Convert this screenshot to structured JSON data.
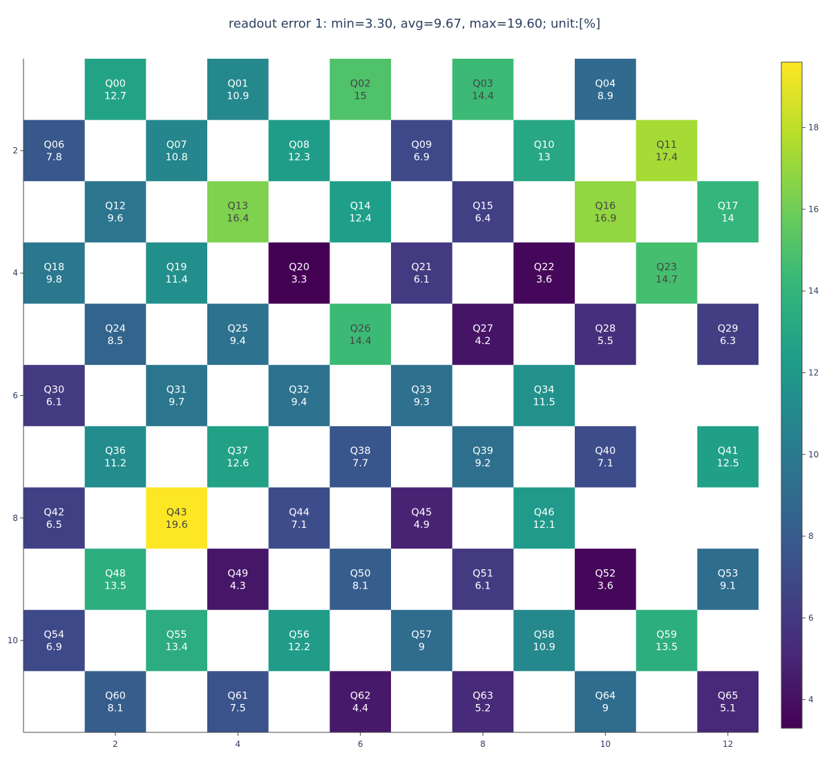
{
  "chart_data": {
    "type": "heatmap",
    "title": "readout error 1: min=3.30,  avg=9.67,  max=19.60; unit:[%]",
    "xlabel": "",
    "ylabel": "",
    "x_range": [
      0.5,
      12.5
    ],
    "y_range": [
      11.5,
      0.5
    ],
    "x_ticks": [
      2,
      4,
      6,
      8,
      10,
      12
    ],
    "y_ticks": [
      2,
      4,
      6,
      8,
      10
    ],
    "colorscale": "viridis",
    "color_range": [
      3.3,
      19.6
    ],
    "colorbar_ticks": [
      4,
      6,
      8,
      10,
      12,
      14,
      16,
      18
    ],
    "grid": false,
    "cells": [
      {
        "qubit": "Q00",
        "x": 2,
        "y": 1,
        "value": 12.7,
        "label": "12.7"
      },
      {
        "qubit": "Q01",
        "x": 4,
        "y": 1,
        "value": 10.9,
        "label": "10.9"
      },
      {
        "qubit": "Q02",
        "x": 6,
        "y": 1,
        "value": 15,
        "label": "15"
      },
      {
        "qubit": "Q03",
        "x": 8,
        "y": 1,
        "value": 14.4,
        "label": "14.4"
      },
      {
        "qubit": "Q04",
        "x": 10,
        "y": 1,
        "value": 8.9,
        "label": "8.9"
      },
      {
        "qubit": "Q06",
        "x": 1,
        "y": 2,
        "value": 7.8,
        "label": "7.8"
      },
      {
        "qubit": "Q07",
        "x": 3,
        "y": 2,
        "value": 10.8,
        "label": "10.8"
      },
      {
        "qubit": "Q08",
        "x": 5,
        "y": 2,
        "value": 12.3,
        "label": "12.3"
      },
      {
        "qubit": "Q09",
        "x": 7,
        "y": 2,
        "value": 6.9,
        "label": "6.9"
      },
      {
        "qubit": "Q10",
        "x": 9,
        "y": 2,
        "value": 13,
        "label": "13"
      },
      {
        "qubit": "Q11",
        "x": 11,
        "y": 2,
        "value": 17.4,
        "label": "17.4"
      },
      {
        "qubit": "Q12",
        "x": 2,
        "y": 3,
        "value": 9.6,
        "label": "9.6"
      },
      {
        "qubit": "Q13",
        "x": 4,
        "y": 3,
        "value": 16.4,
        "label": "16.4"
      },
      {
        "qubit": "Q14",
        "x": 6,
        "y": 3,
        "value": 12.4,
        "label": "12.4"
      },
      {
        "qubit": "Q15",
        "x": 8,
        "y": 3,
        "value": 6.4,
        "label": "6.4"
      },
      {
        "qubit": "Q16",
        "x": 10,
        "y": 3,
        "value": 16.9,
        "label": "16.9"
      },
      {
        "qubit": "Q17",
        "x": 12,
        "y": 3,
        "value": 14,
        "label": "14"
      },
      {
        "qubit": "Q18",
        "x": 1,
        "y": 4,
        "value": 9.8,
        "label": "9.8"
      },
      {
        "qubit": "Q19",
        "x": 3,
        "y": 4,
        "value": 11.4,
        "label": "11.4"
      },
      {
        "qubit": "Q20",
        "x": 5,
        "y": 4,
        "value": 3.3,
        "label": "3.3"
      },
      {
        "qubit": "Q21",
        "x": 7,
        "y": 4,
        "value": 6.1,
        "label": "6.1"
      },
      {
        "qubit": "Q22",
        "x": 9,
        "y": 4,
        "value": 3.6,
        "label": "3.6"
      },
      {
        "qubit": "Q23",
        "x": 11,
        "y": 4,
        "value": 14.7,
        "label": "14.7"
      },
      {
        "qubit": "Q24",
        "x": 2,
        "y": 5,
        "value": 8.5,
        "label": "8.5"
      },
      {
        "qubit": "Q25",
        "x": 4,
        "y": 5,
        "value": 9.4,
        "label": "9.4"
      },
      {
        "qubit": "Q26",
        "x": 6,
        "y": 5,
        "value": 14.4,
        "label": "14.4"
      },
      {
        "qubit": "Q27",
        "x": 8,
        "y": 5,
        "value": 4.2,
        "label": "4.2"
      },
      {
        "qubit": "Q28",
        "x": 10,
        "y": 5,
        "value": 5.5,
        "label": "5.5"
      },
      {
        "qubit": "Q29",
        "x": 12,
        "y": 5,
        "value": 6.3,
        "label": "6.3"
      },
      {
        "qubit": "Q30",
        "x": 1,
        "y": 6,
        "value": 6.1,
        "label": "6.1"
      },
      {
        "qubit": "Q31",
        "x": 3,
        "y": 6,
        "value": 9.7,
        "label": "9.7"
      },
      {
        "qubit": "Q32",
        "x": 5,
        "y": 6,
        "value": 9.4,
        "label": "9.4"
      },
      {
        "qubit": "Q33",
        "x": 7,
        "y": 6,
        "value": 9.3,
        "label": "9.3"
      },
      {
        "qubit": "Q34",
        "x": 9,
        "y": 6,
        "value": 11.5,
        "label": "11.5"
      },
      {
        "qubit": "Q36",
        "x": 2,
        "y": 7,
        "value": 11.2,
        "label": "11.2"
      },
      {
        "qubit": "Q37",
        "x": 4,
        "y": 7,
        "value": 12.6,
        "label": "12.6"
      },
      {
        "qubit": "Q38",
        "x": 6,
        "y": 7,
        "value": 7.7,
        "label": "7.7"
      },
      {
        "qubit": "Q39",
        "x": 8,
        "y": 7,
        "value": 9.2,
        "label": "9.2"
      },
      {
        "qubit": "Q40",
        "x": 10,
        "y": 7,
        "value": 7.1,
        "label": "7.1"
      },
      {
        "qubit": "Q41",
        "x": 12,
        "y": 7,
        "value": 12.5,
        "label": "12.5"
      },
      {
        "qubit": "Q42",
        "x": 1,
        "y": 8,
        "value": 6.5,
        "label": "6.5"
      },
      {
        "qubit": "Q43",
        "x": 3,
        "y": 8,
        "value": 19.6,
        "label": "19.6"
      },
      {
        "qubit": "Q44",
        "x": 5,
        "y": 8,
        "value": 7.1,
        "label": "7.1"
      },
      {
        "qubit": "Q45",
        "x": 7,
        "y": 8,
        "value": 4.9,
        "label": "4.9"
      },
      {
        "qubit": "Q46",
        "x": 9,
        "y": 8,
        "value": 12.1,
        "label": "12.1"
      },
      {
        "qubit": "Q48",
        "x": 2,
        "y": 9,
        "value": 13.5,
        "label": "13.5"
      },
      {
        "qubit": "Q49",
        "x": 4,
        "y": 9,
        "value": 4.3,
        "label": "4.3"
      },
      {
        "qubit": "Q50",
        "x": 6,
        "y": 9,
        "value": 8.1,
        "label": "8.1"
      },
      {
        "qubit": "Q51",
        "x": 8,
        "y": 9,
        "value": 6.1,
        "label": "6.1"
      },
      {
        "qubit": "Q52",
        "x": 10,
        "y": 9,
        "value": 3.6,
        "label": "3.6"
      },
      {
        "qubit": "Q53",
        "x": 12,
        "y": 9,
        "value": 9.1,
        "label": "9.1"
      },
      {
        "qubit": "Q54",
        "x": 1,
        "y": 10,
        "value": 6.9,
        "label": "6.9"
      },
      {
        "qubit": "Q55",
        "x": 3,
        "y": 10,
        "value": 13.4,
        "label": "13.4"
      },
      {
        "qubit": "Q56",
        "x": 5,
        "y": 10,
        "value": 12.2,
        "label": "12.2"
      },
      {
        "qubit": "Q57",
        "x": 7,
        "y": 10,
        "value": 9,
        "label": "9"
      },
      {
        "qubit": "Q58",
        "x": 9,
        "y": 10,
        "value": 10.9,
        "label": "10.9"
      },
      {
        "qubit": "Q59",
        "x": 11,
        "y": 10,
        "value": 13.5,
        "label": "13.5"
      },
      {
        "qubit": "Q60",
        "x": 2,
        "y": 11,
        "value": 8.1,
        "label": "8.1"
      },
      {
        "qubit": "Q61",
        "x": 4,
        "y": 11,
        "value": 7.5,
        "label": "7.5"
      },
      {
        "qubit": "Q62",
        "x": 6,
        "y": 11,
        "value": 4.4,
        "label": "4.4"
      },
      {
        "qubit": "Q63",
        "x": 8,
        "y": 11,
        "value": 5.2,
        "label": "5.2"
      },
      {
        "qubit": "Q64",
        "x": 10,
        "y": 11,
        "value": 9,
        "label": "9"
      },
      {
        "qubit": "Q65",
        "x": 12,
        "y": 11,
        "value": 5.1,
        "label": "5.1"
      }
    ]
  }
}
